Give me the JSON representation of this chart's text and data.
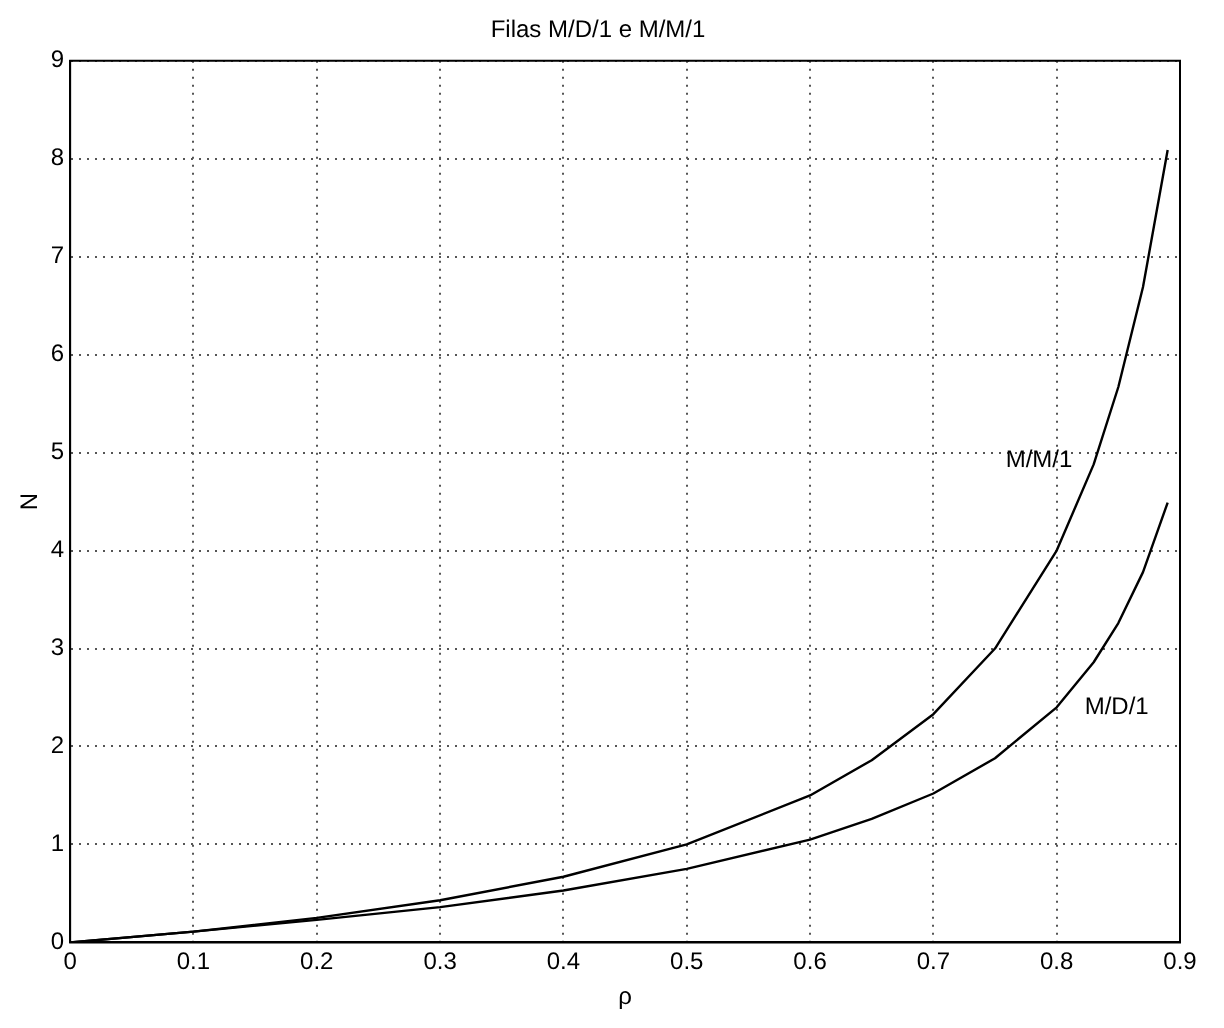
{
  "chart_data": {
    "type": "line",
    "title": "Filas M/D/1 e M/M/1",
    "xlabel": "ρ",
    "ylabel": "N",
    "x": [
      0,
      0.1,
      0.2,
      0.3,
      0.4,
      0.5,
      0.6,
      0.65,
      0.7,
      0.75,
      0.8,
      0.83,
      0.85,
      0.87,
      0.89
    ],
    "series": [
      {
        "name": "M/M/1",
        "color": "#000000",
        "values": [
          0,
          0.11,
          0.25,
          0.43,
          0.67,
          1.0,
          1.5,
          1.86,
          2.33,
          3.0,
          4.0,
          4.88,
          5.67,
          6.69,
          8.09
        ]
      },
      {
        "name": "M/D/1",
        "color": "#000000",
        "values": [
          0,
          0.11,
          0.23,
          0.36,
          0.53,
          0.75,
          1.05,
          1.26,
          1.52,
          1.88,
          2.4,
          2.86,
          3.26,
          3.78,
          4.49
        ]
      }
    ],
    "xlim": [
      0,
      0.9
    ],
    "xticks": [
      0,
      0.1,
      0.2,
      0.3,
      0.4,
      0.5,
      0.6,
      0.7,
      0.8,
      0.9
    ],
    "ylim": [
      0,
      9
    ],
    "yticks": [
      0,
      1,
      2,
      3,
      4,
      5,
      6,
      7,
      8,
      9
    ],
    "grid": true,
    "legend": false,
    "marker": "none",
    "line_style": "solid"
  }
}
